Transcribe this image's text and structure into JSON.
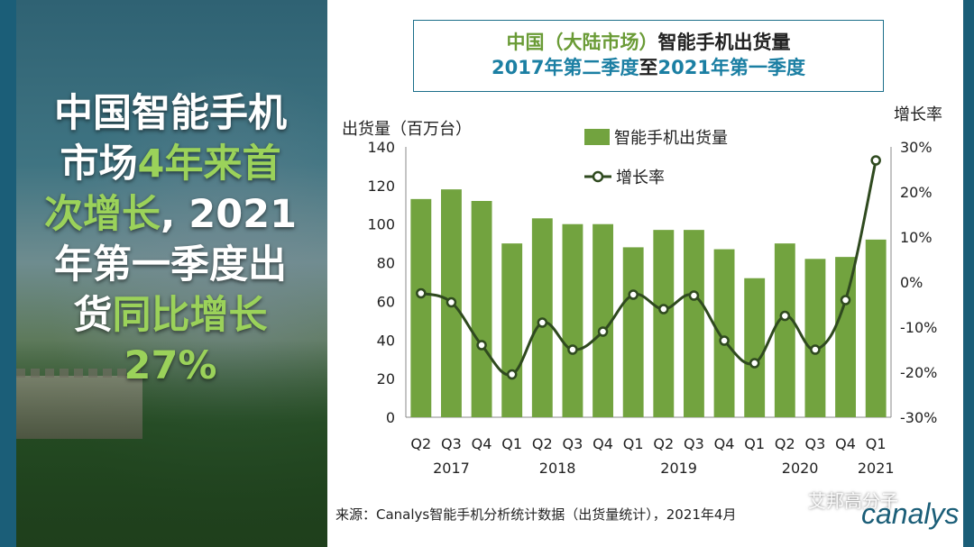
{
  "headline": {
    "line1": "中国智能手机",
    "line2_a": "市场",
    "line2_b": "4年来首",
    "line3_a": "次增长",
    "line3_b": ", 2021",
    "line4": "年第一季度出",
    "line5_a": "货",
    "line5_b": "同比增长",
    "line6": "27%"
  },
  "title": {
    "part1": "中国（大陆市场）",
    "part2": "智能手机出货量",
    "part3": "2017年第二季度",
    "part4": "至",
    "part5": "2021年第一季度"
  },
  "source": "来源：Canalys智能手机分析统计数据（出货量统计），2021年4月",
  "logo": "canalys",
  "watermark": "艾邦高分子",
  "colors": {
    "bar": "#72a33f",
    "line": "#2f4a1f",
    "frame": "#1b5e78"
  },
  "chart_data": {
    "type": "bar",
    "categories": [
      "Q2",
      "Q3",
      "Q4",
      "Q1",
      "Q2",
      "Q3",
      "Q4",
      "Q1",
      "Q2",
      "Q3",
      "Q4",
      "Q1",
      "Q2",
      "Q3",
      "Q4",
      "Q1"
    ],
    "year_labels": [
      {
        "label": "2017",
        "index": 1
      },
      {
        "label": "2018",
        "index": 4.5
      },
      {
        "label": "2019",
        "index": 8.5
      },
      {
        "label": "2020",
        "index": 12.5
      },
      {
        "label": "2021",
        "index": 15
      }
    ],
    "series": [
      {
        "name": "智能手机出货量",
        "type": "bar",
        "axis": "left",
        "values": [
          113,
          118,
          112,
          90,
          103,
          100,
          100,
          88,
          97,
          97,
          87,
          72,
          90,
          82,
          83,
          92
        ]
      },
      {
        "name": "增长率",
        "type": "line",
        "axis": "right",
        "values": [
          -2.5,
          -4.5,
          -14,
          -20.5,
          -9,
          -15,
          -11,
          -2.8,
          -6,
          -3,
          -13,
          -18,
          -7.5,
          -15,
          -4,
          27
        ]
      }
    ],
    "ylabel": "出货量（百万台）",
    "y2label": "增长率",
    "ylim": [
      0,
      140
    ],
    "yticks": [
      0,
      20,
      40,
      60,
      80,
      100,
      120,
      140
    ],
    "y2lim": [
      -30,
      30
    ],
    "y2ticks": [
      "-30%",
      "-20%",
      "-10%",
      "0%",
      "10%",
      "20%",
      "30%"
    ],
    "legend_position": "top-center"
  }
}
